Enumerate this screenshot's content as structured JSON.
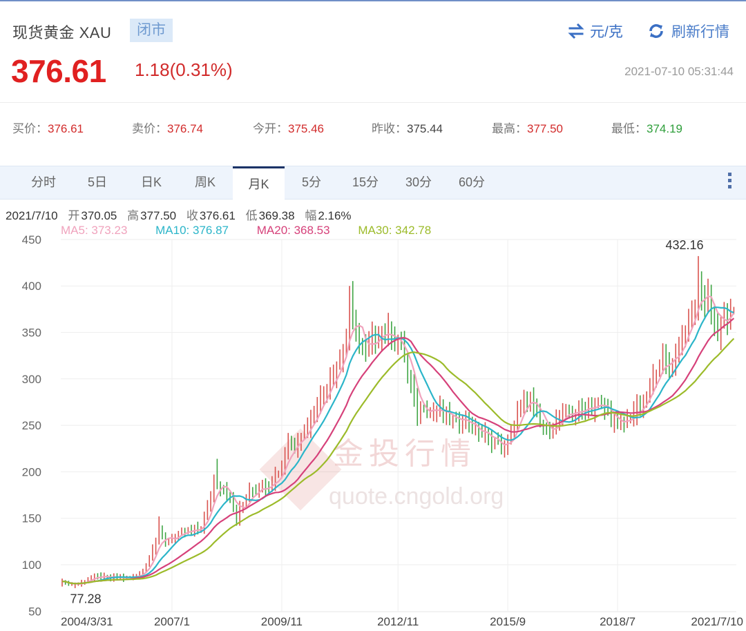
{
  "header": {
    "title": "现货黄金 XAU",
    "status_badge": "闭市",
    "price": "376.61",
    "change": "1.18(0.31%)",
    "unit_label": "元/克",
    "refresh_label": "刷新行情",
    "timestamp": "2021-07-10 05:31:44",
    "icons": {
      "unit": "swap-arrows-icon",
      "refresh": "refresh-icon"
    }
  },
  "stats": [
    {
      "label": "买价：",
      "value": "376.61",
      "color": "red"
    },
    {
      "label": "卖价：",
      "value": "376.74",
      "color": "red"
    },
    {
      "label": "今开：",
      "value": "375.46",
      "color": "red"
    },
    {
      "label": "昨收：",
      "value": "375.44",
      "color": "dark"
    },
    {
      "label": "最高：",
      "value": "377.50",
      "color": "red"
    },
    {
      "label": "最低：",
      "value": "374.19",
      "color": "green"
    }
  ],
  "tabs": [
    {
      "label": "分时",
      "active": false
    },
    {
      "label": "5日",
      "active": false
    },
    {
      "label": "日K",
      "active": false
    },
    {
      "label": "周K",
      "active": false
    },
    {
      "label": "月K",
      "active": true
    },
    {
      "label": "5分",
      "active": false
    },
    {
      "label": "15分",
      "active": false
    },
    {
      "label": "30分",
      "active": false
    },
    {
      "label": "60分",
      "active": false
    }
  ],
  "ohlc_bar": {
    "date": "2021/7/10",
    "open_label": "开",
    "open": "370.05",
    "high_label": "高",
    "high": "377.50",
    "close_label": "收",
    "close": "376.61",
    "low_label": "低",
    "low": "369.38",
    "range_label": "幅",
    "range": "2.16%"
  },
  "ma_legend": [
    {
      "label": "MA5: 373.23",
      "color": "#f0a3bd"
    },
    {
      "label": "MA10: 376.87",
      "color": "#2bb5c9"
    },
    {
      "label": "MA20: 368.53",
      "color": "#d6417a"
    },
    {
      "label": "MA30: 342.78",
      "color": "#9cbb2a"
    }
  ],
  "watermark": {
    "cn": "金投行情",
    "url": "quote.cngold.org"
  },
  "colors": {
    "up": "#d9534f",
    "down": "#3fa544",
    "grid": "#eeeeee"
  },
  "chart_data": {
    "type": "candlestick",
    "title": "现货黄金 XAU 月K",
    "xlabel": "",
    "ylabel": "元/克",
    "ylim": [
      50,
      450
    ],
    "yticks": [
      50,
      100,
      150,
      200,
      250,
      300,
      350,
      400,
      450
    ],
    "xticks": [
      {
        "label": "2004/3/31",
        "month_index": 0
      },
      {
        "label": "2007/1",
        "month_index": 34
      },
      {
        "label": "2009/11",
        "month_index": 68
      },
      {
        "label": "2012/11",
        "month_index": 104
      },
      {
        "label": "2015/9",
        "month_index": 138
      },
      {
        "label": "2018/7",
        "month_index": 172
      },
      {
        "label": "2021/7/10",
        "month_index": 208
      }
    ],
    "grid": true,
    "annotations": [
      {
        "text": "432.16",
        "kind": "max",
        "month_index": 197,
        "value": 432.16
      },
      {
        "text": "77.28",
        "kind": "min",
        "month_index": 3,
        "value": 77.28
      }
    ],
    "series_ma": [
      {
        "name": "MA5",
        "last": 373.23
      },
      {
        "name": "MA10",
        "last": 376.87
      },
      {
        "name": "MA20",
        "last": 368.53
      },
      {
        "name": "MA30",
        "last": 342.78
      }
    ],
    "close_anchors": [
      [
        0,
        82
      ],
      [
        3,
        78
      ],
      [
        5,
        80
      ],
      [
        8,
        85
      ],
      [
        10,
        87
      ],
      [
        14,
        86
      ],
      [
        18,
        86
      ],
      [
        20,
        86
      ],
      [
        22,
        87
      ],
      [
        24,
        90
      ],
      [
        26,
        100
      ],
      [
        28,
        118
      ],
      [
        30,
        135
      ],
      [
        31,
        128
      ],
      [
        32,
        124
      ],
      [
        34,
        130
      ],
      [
        37,
        134
      ],
      [
        40,
        136
      ],
      [
        43,
        140
      ],
      [
        45,
        160
      ],
      [
        46,
        178
      ],
      [
        47,
        195
      ],
      [
        48,
        188
      ],
      [
        50,
        182
      ],
      [
        52,
        172
      ],
      [
        53,
        158
      ],
      [
        54,
        150
      ],
      [
        55,
        160
      ],
      [
        57,
        172
      ],
      [
        58,
        182
      ],
      [
        60,
        180
      ],
      [
        62,
        186
      ],
      [
        64,
        185
      ],
      [
        66,
        196
      ],
      [
        68,
        205
      ],
      [
        70,
        232
      ],
      [
        72,
        228
      ],
      [
        74,
        242
      ],
      [
        76,
        252
      ],
      [
        78,
        262
      ],
      [
        80,
        282
      ],
      [
        82,
        292
      ],
      [
        84,
        310
      ],
      [
        86,
        322
      ],
      [
        88,
        345
      ],
      [
        89,
        385
      ],
      [
        90,
        360
      ],
      [
        91,
        352
      ],
      [
        92,
        340
      ],
      [
        94,
        325
      ],
      [
        96,
        342
      ],
      [
        98,
        350
      ],
      [
        100,
        352
      ],
      [
        102,
        345
      ],
      [
        104,
        338
      ],
      [
        106,
        328
      ],
      [
        107,
        305
      ],
      [
        108,
        290
      ],
      [
        110,
        262
      ],
      [
        112,
        272
      ],
      [
        114,
        265
      ],
      [
        116,
        268
      ],
      [
        118,
        262
      ],
      [
        120,
        258
      ],
      [
        122,
        252
      ],
      [
        124,
        262
      ],
      [
        126,
        250
      ],
      [
        128,
        245
      ],
      [
        130,
        240
      ],
      [
        132,
        238
      ],
      [
        134,
        232
      ],
      [
        136,
        226
      ],
      [
        137,
        224
      ],
      [
        139,
        242
      ],
      [
        141,
        262
      ],
      [
        143,
        275
      ],
      [
        145,
        278
      ],
      [
        146,
        268
      ],
      [
        147,
        262
      ],
      [
        148,
        252
      ],
      [
        150,
        240
      ],
      [
        152,
        250
      ],
      [
        154,
        258
      ],
      [
        156,
        262
      ],
      [
        158,
        262
      ],
      [
        160,
        266
      ],
      [
        162,
        270
      ],
      [
        164,
        270
      ],
      [
        166,
        274
      ],
      [
        168,
        268
      ],
      [
        170,
        258
      ],
      [
        172,
        250
      ],
      [
        174,
        252
      ],
      [
        176,
        262
      ],
      [
        178,
        266
      ],
      [
        180,
        272
      ],
      [
        182,
        292
      ],
      [
        184,
        312
      ],
      [
        186,
        318
      ],
      [
        188,
        316
      ],
      [
        190,
        330
      ],
      [
        192,
        345
      ],
      [
        194,
        362
      ],
      [
        196,
        380
      ],
      [
        197,
        400
      ],
      [
        198,
        395
      ],
      [
        199,
        382
      ],
      [
        200,
        390
      ],
      [
        201,
        378
      ],
      [
        202,
        362
      ],
      [
        203,
        350
      ],
      [
        204,
        358
      ],
      [
        205,
        372
      ],
      [
        206,
        368
      ],
      [
        207,
        372
      ],
      [
        208,
        376.61
      ]
    ],
    "note": "Monthly bars estimated from the plotted pixels; last bar O 370.05 H 377.50 L 369.38 C 376.61"
  }
}
